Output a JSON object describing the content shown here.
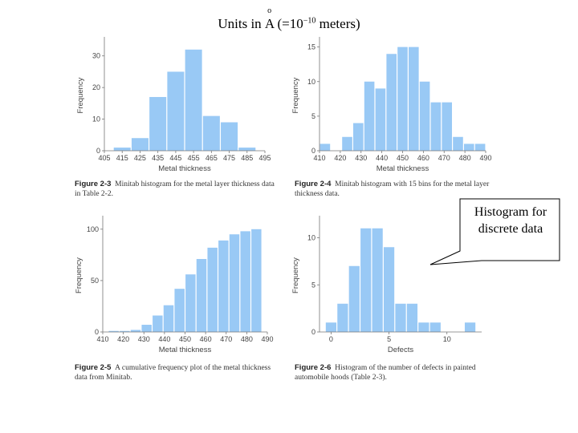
{
  "header": {
    "title_prefix": "Units in ",
    "title_unit": "A",
    "title_eq": " (=10",
    "title_exp": "−10",
    "title_suffix": " meters)"
  },
  "callout": {
    "text": "Histogram for discrete data"
  },
  "chart_data": [
    {
      "type": "bar",
      "xlabel": "Metal thickness",
      "ylabel": "Frequency",
      "x_ticks": [
        405,
        415,
        425,
        435,
        445,
        455,
        465,
        475,
        485,
        495
      ],
      "xlim": [
        405,
        495
      ],
      "ylim": [
        0,
        35
      ],
      "y_ticks": [
        0,
        10,
        20,
        30
      ],
      "bin_width": 10,
      "bin_starts": [
        410,
        420,
        430,
        440,
        450,
        460,
        470,
        480
      ],
      "values": [
        1,
        4,
        17,
        25,
        32,
        11,
        9,
        1
      ],
      "color": "#99c9f5",
      "caption_label": "Figure 2-3",
      "caption_text": "Minitab histogram for the metal layer thickness data in Table 2-2."
    },
    {
      "type": "bar",
      "xlabel": "Metal thickness",
      "ylabel": "Frequency",
      "x_ticks": [
        410,
        420,
        430,
        440,
        450,
        460,
        470,
        480,
        490
      ],
      "xlim": [
        410,
        490
      ],
      "ylim": [
        0,
        16
      ],
      "y_ticks": [
        0,
        5,
        10,
        15
      ],
      "bin_width": 5.333,
      "bin_starts": [
        410,
        415.33,
        420.67,
        426,
        431.33,
        436.67,
        442,
        447.33,
        452.67,
        458,
        463.33,
        468.67,
        474,
        479.33,
        484.67
      ],
      "values": [
        1,
        0,
        2,
        4,
        10,
        9,
        14,
        15,
        15,
        10,
        7,
        7,
        2,
        1,
        1
      ],
      "color": "#99c9f5",
      "caption_label": "Figure 2-4",
      "caption_text": "Minitab histogram with 15 bins for the metal layer thickness data."
    },
    {
      "type": "bar",
      "xlabel": "Metal thickness",
      "ylabel": "Frequency",
      "x_ticks": [
        410,
        420,
        430,
        440,
        450,
        460,
        470,
        480,
        490
      ],
      "xlim": [
        410,
        490
      ],
      "ylim": [
        0,
        110
      ],
      "y_ticks": [
        0,
        50,
        100
      ],
      "bin_width": 5.333,
      "bin_starts": [
        412.67,
        418,
        423.33,
        428.67,
        434,
        439.33,
        444.67,
        450,
        455.33,
        460.67,
        466,
        471.33,
        476.67,
        482
      ],
      "values": [
        1,
        1,
        2,
        7,
        16,
        26,
        42,
        56,
        71,
        82,
        89,
        95,
        98,
        100
      ],
      "color": "#99c9f5",
      "caption_label": "Figure 2-5",
      "caption_text": "A cumulative frequency plot of the metal thickness data from Minitab."
    },
    {
      "type": "bar",
      "xlabel": "Defects",
      "ylabel": "Frequency",
      "x_ticks": [
        0,
        5,
        10
      ],
      "xlim": [
        -1,
        13
      ],
      "ylim": [
        0,
        12
      ],
      "y_ticks": [
        0,
        5,
        10
      ],
      "bin_width": 1,
      "bin_starts": [
        -0.5,
        0.5,
        1.5,
        2.5,
        3.5,
        4.5,
        5.5,
        6.5,
        7.5,
        8.5,
        9.5,
        10.5,
        11.5
      ],
      "values": [
        1,
        3,
        7,
        11,
        11,
        9,
        3,
        3,
        1,
        1,
        0,
        0,
        1
      ],
      "color": "#99c9f5",
      "caption_label": "Figure 2-6",
      "caption_text": "Histogram of the number of defects in painted automobile hoods (Table 2-3)."
    }
  ]
}
